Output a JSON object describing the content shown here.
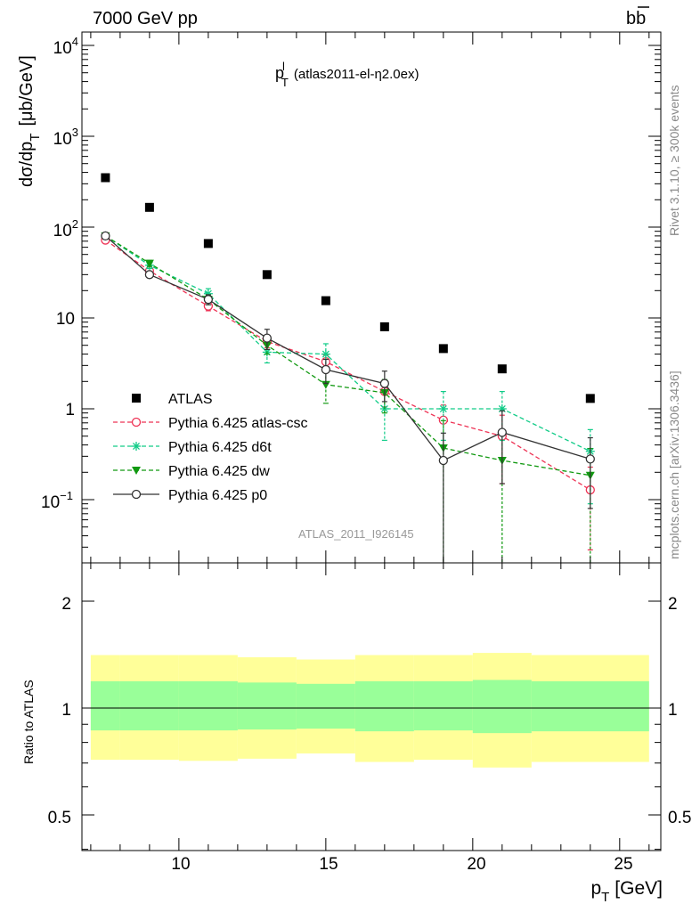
{
  "header": {
    "left": "7000 GeV pp",
    "right_b": "b",
    "right_bbar": "b"
  },
  "side_labels": {
    "top": "Rivet 3.1.10, ≥ 300k events",
    "bottom": "mcplots.cern.ch [arXiv:1306.3436]"
  },
  "main_plot": {
    "title_main": "p",
    "title_sup": "l",
    "title_sub": "T",
    "title_rest": "(atlas2011-el-η2.0ex)",
    "ylabel": "dσ/dp",
    "ylabel_sub": "T",
    "ylabel_unit": "[μb/GeV]",
    "watermark": "ATLAS_2011_I926145",
    "ytick_labels": [
      {
        "base": "10",
        "exp": "4"
      },
      {
        "base": "10",
        "exp": "3"
      },
      {
        "base": "10",
        "exp": "2"
      },
      {
        "base": "10",
        "exp": ""
      },
      {
        "base": "1",
        "exp": ""
      },
      {
        "base": "10",
        "exp": "−1"
      }
    ]
  },
  "ratio_plot": {
    "ylabel": "Ratio to ATLAS",
    "ytick_labels": [
      "2",
      "1",
      "0.5"
    ]
  },
  "xaxis": {
    "label": "p",
    "label_sub": "T",
    "label_unit": "[GeV]",
    "tick_labels": [
      "10",
      "15",
      "20",
      "25"
    ]
  },
  "colors": {
    "data": "#000000",
    "atlas_csc": "#ee3355",
    "d6t": "#11cc88",
    "dw": "#119911",
    "p0": "#333333",
    "band_inner": "#99ff99",
    "band_outer": "#ffff99"
  },
  "chart_data": [
    {
      "type": "scatter",
      "panel": "main",
      "title": "p_T^l (atlas2011-el-η2.0ex)",
      "xlabel": "p_T [GeV]",
      "ylabel": "dσ/dp_T [μb/GeV]",
      "xlim": [
        6.7,
        26.4
      ],
      "ylim": [
        0.02,
        15000
      ],
      "yscale": "log",
      "legend_position": "lower-left",
      "x": [
        7.5,
        9,
        11,
        13,
        15,
        17,
        19,
        21,
        24
      ],
      "series": [
        {
          "name": "ATLAS",
          "key": "data",
          "marker": "square",
          "values": [
            350,
            165,
            66,
            30,
            15.5,
            8,
            4.6,
            2.75,
            1.3
          ]
        },
        {
          "name": "Pythia 6.425 atlas-csc",
          "key": "atlas_csc",
          "marker": "open-circle",
          "dash": true,
          "values": [
            72,
            33,
            13.5,
            5.5,
            3.3,
            1.55,
            0.75,
            0.5,
            0.128
          ],
          "errors": [
            0,
            0,
            1.5,
            0.8,
            0.6,
            0.5,
            0.35,
            0.35,
            0.1
          ]
        },
        {
          "name": "Pythia 6.425 d6t",
          "key": "d6t",
          "marker": "star",
          "dash": true,
          "values": [
            80,
            38,
            18.5,
            4.2,
            4.0,
            1.0,
            1.0,
            1.0,
            0.34
          ],
          "errors": [
            0,
            3,
            2.5,
            1.0,
            1.2,
            0.55,
            0.55,
            0.55,
            0.25
          ]
        },
        {
          "name": "Pythia 6.425 dw",
          "key": "dw",
          "marker": "triangle-down",
          "dash": true,
          "values": [
            80,
            40,
            16,
            5.0,
            1.85,
            1.5,
            0.37,
            0.27,
            0.185
          ],
          "errors": [
            0,
            3,
            2,
            1.0,
            0.7,
            0.6,
            0.37,
            0.25,
            0.18
          ]
        },
        {
          "name": "Pythia 6.425 p0",
          "key": "p0",
          "marker": "open-circle",
          "dash": false,
          "values": [
            80,
            30,
            16,
            6.0,
            2.7,
            1.9,
            0.27,
            0.55,
            0.28
          ],
          "errors": [
            0,
            2,
            2,
            1.5,
            0.8,
            0.7,
            0.27,
            0.4,
            0.2
          ]
        }
      ]
    },
    {
      "type": "area",
      "panel": "ratio",
      "ylabel": "Ratio to ATLAS",
      "xlim": [
        6.7,
        26.4
      ],
      "ylim": [
        0.33,
        2.5
      ],
      "yscale": "log",
      "reference_line": 1,
      "bins": [
        [
          7,
          8
        ],
        [
          8,
          10
        ],
        [
          10,
          12
        ],
        [
          12,
          14
        ],
        [
          14,
          16
        ],
        [
          16,
          18
        ],
        [
          18,
          20
        ],
        [
          20,
          22
        ],
        [
          22,
          26
        ]
      ],
      "inner_band": {
        "low": [
          0.865,
          0.865,
          0.865,
          0.87,
          0.875,
          0.86,
          0.865,
          0.85,
          0.86
        ],
        "high": [
          1.19,
          1.19,
          1.19,
          1.18,
          1.17,
          1.19,
          1.19,
          1.2,
          1.19
        ]
      },
      "outer_band": {
        "low": [
          0.715,
          0.715,
          0.71,
          0.72,
          0.745,
          0.705,
          0.715,
          0.68,
          0.705
        ],
        "high": [
          1.41,
          1.41,
          1.41,
          1.39,
          1.37,
          1.41,
          1.41,
          1.43,
          1.41
        ]
      }
    }
  ]
}
